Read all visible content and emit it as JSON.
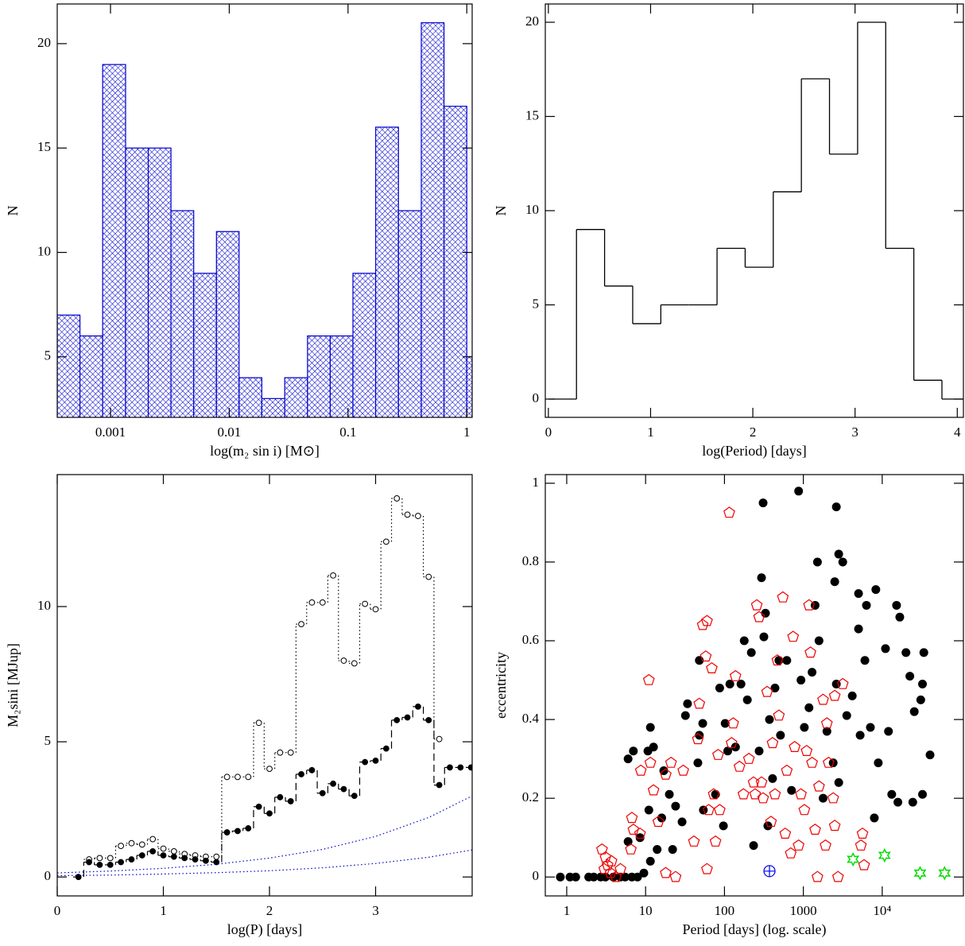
{
  "chart_data": [
    {
      "type": "histogram",
      "style": "hatched",
      "color": "#0000cc",
      "xlabel": "log(m₂ sin i) [M⊙]",
      "ylabel": "N",
      "xscale": "log",
      "bins": [
        0.000356,
        0.000553,
        0.000859,
        0.00134,
        0.00208,
        0.00323,
        0.00502,
        0.0078,
        0.0121,
        0.0188,
        0.0293,
        0.0456,
        0.0708,
        0.11,
        0.171,
        0.266,
        0.414,
        0.643,
        1.0,
        1.55
      ],
      "values": [
        7,
        6,
        19,
        15,
        15,
        12,
        9,
        11,
        4,
        3,
        4,
        6,
        6,
        9,
        16,
        12,
        21,
        17,
        5
      ],
      "xlim": [
        0.000356,
        1.11
      ],
      "xticks": [
        0.001,
        0.01,
        0.1,
        1
      ],
      "ylim": [
        2.1,
        21.9
      ],
      "yticks": [
        5,
        10,
        15,
        20
      ]
    },
    {
      "type": "histogram",
      "style": "step",
      "color": "#000000",
      "xlabel": "log(Period) [days]",
      "ylabel": "N",
      "bins": [
        0,
        0.275,
        0.55,
        0.825,
        1.1,
        1.375,
        1.65,
        1.925,
        2.2,
        2.475,
        2.75,
        3.025,
        3.3,
        3.575,
        3.85,
        4.125
      ],
      "values": [
        0,
        9,
        6,
        4,
        5,
        5,
        8,
        7,
        11,
        17,
        13,
        20,
        8,
        1,
        0
      ],
      "xlim": [
        -0.03,
        4.06
      ],
      "xticks": [
        0,
        1,
        2,
        3,
        4
      ],
      "ylim": [
        -0.97,
        20.97
      ],
      "yticks": [
        0,
        5,
        10,
        15,
        20
      ]
    },
    {
      "type": "line",
      "xlabel": "log(P) [days]",
      "ylabel": "M₂sini [MJup]",
      "x": [
        0.2,
        0.3,
        0.4,
        0.5,
        0.6,
        0.7,
        0.8,
        0.9,
        1.0,
        1.1,
        1.2,
        1.3,
        1.4,
        1.5,
        1.6,
        1.7,
        1.8,
        1.9,
        2.0,
        2.1,
        2.2,
        2.3,
        2.4,
        2.5,
        2.6,
        2.7,
        2.8,
        2.9,
        3.0,
        3.1,
        3.2,
        3.3,
        3.4,
        3.5,
        3.6,
        3.7,
        3.8,
        3.9
      ],
      "series": [
        {
          "color": "#000000",
          "line_style": "dotted",
          "drawstyle": "steps-mid",
          "marker": "open-circle",
          "values": [
            null,
            0.65,
            0.7,
            0.7,
            1.15,
            1.25,
            1.2,
            1.4,
            1.05,
            0.95,
            0.85,
            0.8,
            0.75,
            0.75,
            3.7,
            3.7,
            3.7,
            5.7,
            4.0,
            4.6,
            4.6,
            9.35,
            10.15,
            10.15,
            11.15,
            8.0,
            7.9,
            10.1,
            9.9,
            12.4,
            14.0,
            13.4,
            13.35,
            11.1,
            5.1,
            null,
            null,
            null
          ]
        },
        {
          "color": "#000000",
          "line_style": "dashed",
          "drawstyle": "steps-mid",
          "marker": "filled-circle",
          "values": [
            0,
            0.55,
            0.45,
            0.45,
            0.55,
            0.65,
            0.8,
            0.95,
            0.8,
            0.75,
            0.7,
            0.65,
            0.6,
            0.55,
            1.65,
            1.7,
            1.8,
            2.6,
            2.35,
            2.95,
            2.8,
            3.8,
            3.95,
            3.1,
            3.45,
            3.25,
            3.0,
            4.25,
            4.3,
            4.75,
            5.8,
            5.9,
            6.3,
            5.8,
            3.4,
            4.05,
            4.05,
            4.05
          ]
        },
        {
          "color": "#0000cc",
          "line_style": "dotted",
          "x": [
            0,
            0.5,
            1,
            1.5,
            2,
            2.5,
            3,
            3.5,
            3.91
          ],
          "values": [
            0.15,
            0.22,
            0.32,
            0.47,
            0.7,
            1.02,
            1.5,
            2.2,
            3.0
          ]
        },
        {
          "color": "#0000cc",
          "line_style": "dotted",
          "x": [
            0,
            0.5,
            1,
            1.5,
            2,
            2.5,
            3,
            3.5,
            3.91
          ],
          "values": [
            0.05,
            0.07,
            0.11,
            0.16,
            0.23,
            0.34,
            0.5,
            0.73,
            1.0
          ]
        }
      ],
      "xlim": [
        0,
        3.91
      ],
      "xticks": [
        0,
        1,
        2,
        3
      ],
      "ylim": [
        -0.7,
        14.88
      ],
      "yticks": [
        0,
        5,
        10
      ]
    },
    {
      "type": "scatter",
      "xlabel": "Period [days] (log. scale)",
      "ylabel": "eccentricity",
      "xscale": "log",
      "series": [
        {
          "color": "#000000",
          "marker": "filled-circle",
          "x": [
            0.83,
            1.1,
            1.3,
            1.9,
            2.2,
            2.7,
            3.1,
            3.9,
            4.8,
            5.5,
            6.7,
            7.9,
            9.5,
            6.0,
            8.5,
            11.5,
            14,
            16,
            11,
            6.0,
            7.0,
            10.7,
            11.5,
            12.6,
            17,
            22,
            20,
            24,
            29,
            34,
            32,
            46,
            48,
            53,
            48,
            54,
            77,
            97,
            102,
            110,
            87,
            117,
            138,
            162,
            178,
            195,
            219,
            234,
            275,
            309,
            295,
            316,
            331,
            355,
            372,
            407,
            437,
            490,
            513,
            617,
            708,
            871,
            933,
            1030,
            1180,
            1290,
            1410,
            1510,
            1580,
            1780,
            1990,
            2390,
            2620,
            2810,
            2500,
            2620,
            2810,
            3160,
            3550,
            4170,
            5010,
            6030,
            6310,
            7080,
            7940,
            8910,
            11000,
            12000,
            13200,
            15800,
            20000,
            22400,
            25500,
            30800,
            33700,
            40400,
            16700,
            15200,
            5010,
            24400,
            32400,
            8300,
            5250,
            32400
          ],
          "values": [
            0,
            0,
            0,
            0,
            0,
            0,
            0,
            0,
            0,
            0,
            0,
            0,
            0.01,
            0.09,
            0.1,
            0.04,
            0.07,
            0.15,
            0.17,
            0.3,
            0.32,
            0.32,
            0.38,
            0.33,
            0.27,
            0.07,
            0.21,
            0.18,
            0.14,
            0.44,
            0.41,
            0.29,
            0.36,
            0.39,
            0.55,
            0.17,
            0.21,
            0.13,
            0.39,
            0.32,
            0.48,
            0.49,
            0.33,
            0.49,
            0.6,
            0.45,
            0.57,
            0.08,
            0.32,
            0.95,
            0.76,
            0.61,
            0.67,
            0.13,
            0.4,
            0.25,
            0.48,
            0.55,
            0.36,
            0.55,
            0.22,
            0.98,
            0.5,
            0.38,
            0.43,
            0.52,
            0.69,
            0.8,
            0.6,
            0.2,
            0.37,
            0.29,
            0.49,
            0.24,
            0.75,
            0.94,
            0.82,
            0.8,
            0.41,
            0.46,
            0.63,
            0.55,
            0.69,
            0.38,
            0.15,
            0.29,
            0.58,
            0.37,
            0.21,
            0.19,
            0.57,
            0.51,
            0.42,
            0.45,
            0.57,
            0.31,
            0.66,
            0.69,
            0.72,
            0.19,
            0.21,
            0.73,
            0.36,
            0.49
          ]
        },
        {
          "color": "#ee0000",
          "marker": "pentagon",
          "x": [
            3.0,
            3.1,
            3.3,
            3.6,
            3.7,
            4.2,
            4.8,
            2.8,
            6.7,
            7.0,
            8.5,
            6.5,
            11.5,
            11,
            14.5,
            18,
            24,
            8.7,
            12.6,
            18,
            21,
            30,
            46,
            53,
            60,
            58,
            41,
            63,
            73,
            87,
            83,
            115,
            123,
            129,
            138,
            155,
            174,
            204,
            234,
            245,
            257,
            275,
            295,
            309,
            347,
            389,
            407,
            437,
            468,
            490,
            550,
            589,
            617,
            692,
            741,
            776,
            871,
            933,
            1030,
            1100,
            1180,
            1230,
            1290,
            1410,
            1510,
            1580,
            1780,
            1910,
            1990,
            2090,
            2390,
            2500,
            2500,
            2750,
            3160,
            5370,
            5620,
            5890,
            60,
            77,
            48,
            69
          ],
          "values": [
            0.02,
            0.05,
            0.03,
            0.01,
            0.04,
            0,
            0.02,
            0.07,
            0.15,
            0.12,
            0.11,
            0.07,
            0.29,
            0.5,
            0.14,
            0.01,
            0,
            0.27,
            0.22,
            0.26,
            0.29,
            0.27,
            0.35,
            0.64,
            0.65,
            0.56,
            0.09,
            0.17,
            0.21,
            0.17,
            0.31,
            0.925,
            0.34,
            0.39,
            0.51,
            0.28,
            0.21,
            0.3,
            0.24,
            0.21,
            0.69,
            0.66,
            0.24,
            0.2,
            0.47,
            0.14,
            0.34,
            0.21,
            0.55,
            0.41,
            0.71,
            0.11,
            0.27,
            0.06,
            0.61,
            0.33,
            0.08,
            0.21,
            0.17,
            0.32,
            0.69,
            0.57,
            0.29,
            0.12,
            0,
            0.23,
            0.45,
            0.08,
            0.39,
            0.29,
            0.2,
            0.46,
            0.13,
            0,
            0.49,
            0.08,
            0.11,
            0.03,
            0.02,
            0.09,
            0.44,
            0.53
          ]
        },
        {
          "color": "#0000ee",
          "marker": "circle-plus",
          "x": [
            372
          ],
          "values": [
            0.015
          ]
        },
        {
          "color": "#00dd00",
          "marker": "star",
          "x": [
            4270,
            10700,
            30200,
            61700
          ],
          "values": [
            0.045,
            0.055,
            0.01,
            0.01
          ]
        }
      ],
      "xlim": [
        0.535,
        107000
      ],
      "xticks": [
        1,
        10,
        100,
        1000,
        {
          "value": 10000,
          "label": "10⁴"
        }
      ],
      "ylim": [
        -0.048,
        1.022
      ],
      "yticks": [
        0,
        0.2,
        0.4,
        0.6,
        0.8,
        1
      ]
    }
  ]
}
